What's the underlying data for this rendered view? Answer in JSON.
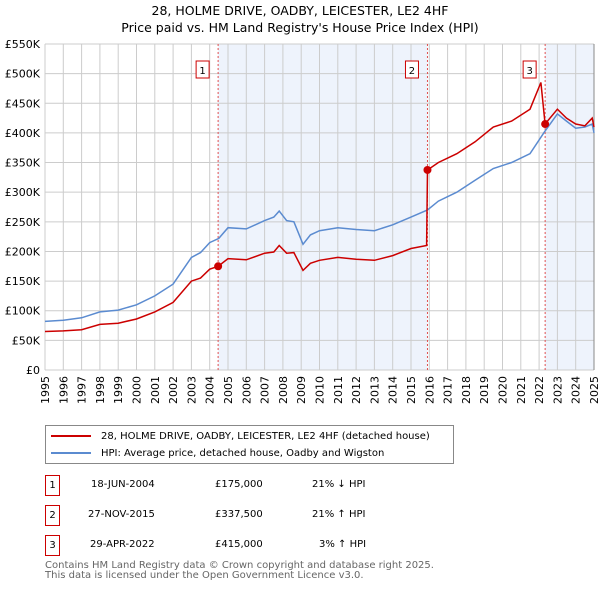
{
  "chart_data": {
    "type": "line",
    "title": "28, HOLME DRIVE, OADBY, LEICESTER, LE2 4HF",
    "subtitle": "Price paid vs. HM Land Registry's House Price Index (HPI)",
    "xlim": [
      1995,
      2025
    ],
    "ylim": [
      0,
      550000
    ],
    "x_ticks": [
      "1995",
      "1996",
      "1997",
      "1998",
      "1999",
      "2000",
      "2001",
      "2002",
      "2003",
      "2004",
      "2005",
      "2006",
      "2007",
      "2008",
      "2009",
      "2010",
      "2011",
      "2012",
      "2013",
      "2014",
      "2015",
      "2016",
      "2017",
      "2018",
      "2019",
      "2020",
      "2021",
      "2022",
      "2023",
      "2024",
      "2025"
    ],
    "y_ticks": [
      {
        "v": 0,
        "label": "£0"
      },
      {
        "v": 50000,
        "label": "£50K"
      },
      {
        "v": 100000,
        "label": "£100K"
      },
      {
        "v": 150000,
        "label": "£150K"
      },
      {
        "v": 200000,
        "label": "£200K"
      },
      {
        "v": 250000,
        "label": "£250K"
      },
      {
        "v": 300000,
        "label": "£300K"
      },
      {
        "v": 350000,
        "label": "£350K"
      },
      {
        "v": 400000,
        "label": "£400K"
      },
      {
        "v": 450000,
        "label": "£450K"
      },
      {
        "v": 500000,
        "label": "£500K"
      },
      {
        "v": 550000,
        "label": "£550K"
      }
    ],
    "grid": true,
    "series": [
      {
        "name": "28, HOLME DRIVE, OADBY, LEICESTER, LE2 4HF (detached house)",
        "color": "#cc0000",
        "x": [
          1995,
          1996,
          1997,
          1998,
          1999,
          2000,
          2001,
          2002,
          2003,
          2003.5,
          2004,
          2004.46,
          2005,
          2006,
          2007,
          2007.5,
          2007.8,
          2008.2,
          2008.6,
          2009.1,
          2009.5,
          2010,
          2011,
          2012,
          2013,
          2014,
          2015,
          2015.85,
          2015.9,
          2016.5,
          2017.5,
          2018.5,
          2019.5,
          2020.5,
          2021.5,
          2022.1,
          2022.33,
          2023,
          2023.5,
          2024,
          2024.5,
          2024.9,
          2025
        ],
        "y": [
          65000,
          66000,
          68000,
          77000,
          79000,
          86000,
          98000,
          114000,
          150000,
          155000,
          170000,
          175000,
          188000,
          186000,
          197000,
          199000,
          210000,
          197000,
          198000,
          168000,
          180000,
          185000,
          190000,
          187000,
          185000,
          193000,
          205000,
          210000,
          337500,
          350000,
          365000,
          385000,
          410000,
          420000,
          440000,
          485000,
          415000,
          440000,
          425000,
          415000,
          412000,
          425000,
          410000
        ]
      },
      {
        "name": "HPI: Average price, detached house, Oadby and Wigston",
        "color": "#5b8bd0",
        "x": [
          1995,
          1996,
          1997,
          1998,
          1999,
          2000,
          2001,
          2002,
          2003,
          2003.5,
          2004,
          2004.5,
          2005,
          2006,
          2007,
          2007.5,
          2007.8,
          2008.2,
          2008.6,
          2009.1,
          2009.5,
          2010,
          2011,
          2012,
          2013,
          2014,
          2015,
          2015.9,
          2016.5,
          2017.5,
          2018.5,
          2019.5,
          2020.5,
          2021.5,
          2022.3,
          2023,
          2023.5,
          2024,
          2024.5,
          2024.9,
          2025
        ],
        "y": [
          82000,
          84000,
          88000,
          98000,
          101000,
          110000,
          125000,
          145000,
          190000,
          198000,
          215000,
          222000,
          240000,
          238000,
          252000,
          258000,
          268000,
          252000,
          250000,
          212000,
          228000,
          235000,
          240000,
          237000,
          235000,
          245000,
          258000,
          270000,
          285000,
          300000,
          320000,
          340000,
          350000,
          365000,
          402000,
          432000,
          420000,
          408000,
          410000,
          415000,
          400000
        ]
      }
    ],
    "sales": [
      {
        "n": "1",
        "x": 2004.46,
        "price": 175000
      },
      {
        "n": "2",
        "x": 2015.9,
        "price": 337500
      },
      {
        "n": "3",
        "x": 2022.33,
        "price": 415000
      }
    ],
    "legend_position": "below"
  },
  "table": [
    {
      "n": "1",
      "date": "18-JUN-2004",
      "price": "£175,000",
      "hpi": "21% ↓ HPI"
    },
    {
      "n": "2",
      "date": "27-NOV-2015",
      "price": "£337,500",
      "hpi": "21% ↑ HPI"
    },
    {
      "n": "3",
      "date": "29-APR-2022",
      "price": "£415,000",
      "hpi": "3% ↑ HPI"
    }
  ],
  "footer": {
    "line1": "Contains HM Land Registry data © Crown copyright and database right 2025.",
    "line2": "This data is licensed under the Open Government Licence v3.0."
  }
}
